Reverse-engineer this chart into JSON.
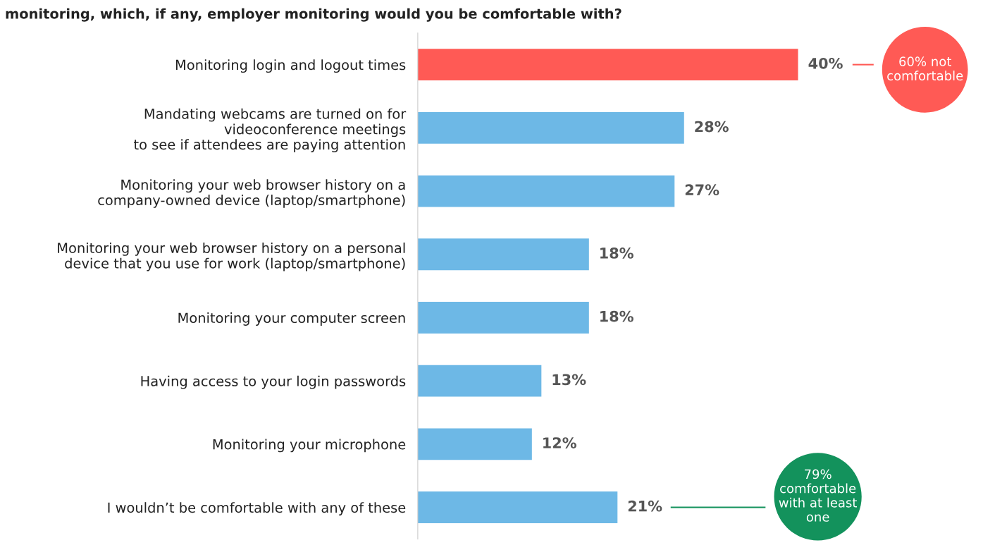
{
  "chart_data": {
    "type": "bar",
    "orientation": "horizontal",
    "title": "monitoring, which, if any, employer monitoring would you be comfortable with?",
    "categories": [
      "Monitoring login and logout times",
      "Mandating webcams are turned on for\nvideoconference meetings\nto see if attendees are paying attention",
      "Monitoring your web browser history on a\ncompany-owned device (laptop/smartphone)",
      "Monitoring your web browser history on a personal\ndevice that you use for work (laptop/smartphone)",
      "Monitoring your computer screen",
      "Having access to your login passwords",
      "Monitoring your microphone",
      "I wouldn’t be comfortable with any of these"
    ],
    "values": [
      40,
      28,
      27,
      18,
      18,
      13,
      12,
      21
    ],
    "colors": [
      "#ff5a55",
      "#6db8e6",
      "#6db8e6",
      "#6db8e6",
      "#6db8e6",
      "#6db8e6",
      "#6db8e6",
      "#6db8e6"
    ],
    "value_labels": [
      "40%",
      "28%",
      "27%",
      "18%",
      "18%",
      "13%",
      "12%",
      "21%"
    ],
    "annotations": [
      "60% not\ncomfortable",
      "79%\ncomfortable\nwith at least\none"
    ]
  }
}
